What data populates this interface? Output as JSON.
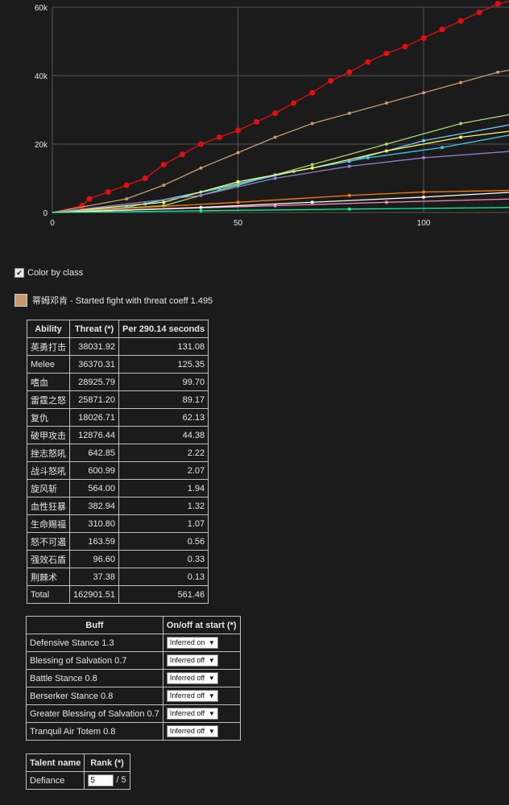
{
  "chart_data": {
    "type": "line",
    "x_ticks": [
      "0",
      "50",
      "100"
    ],
    "y_ticks": [
      "0",
      "20k",
      "40k",
      "60k"
    ],
    "xlim": [
      0,
      125
    ],
    "ylim": [
      0,
      62000
    ],
    "grid": true,
    "series": [
      {
        "color": "#e01010",
        "values": [
          [
            0,
            0
          ],
          [
            8,
            2000
          ],
          [
            10,
            4000
          ],
          [
            15,
            6000
          ],
          [
            20,
            8000
          ],
          [
            25,
            10000
          ],
          [
            30,
            14000
          ],
          [
            35,
            17000
          ],
          [
            40,
            20000
          ],
          [
            45,
            22000
          ],
          [
            50,
            24000
          ],
          [
            55,
            26500
          ],
          [
            60,
            29000
          ],
          [
            65,
            32000
          ],
          [
            70,
            35000
          ],
          [
            75,
            38500
          ],
          [
            80,
            41000
          ],
          [
            85,
            44000
          ],
          [
            90,
            46500
          ],
          [
            95,
            48500
          ],
          [
            100,
            51000
          ],
          [
            105,
            53500
          ],
          [
            110,
            56000
          ],
          [
            115,
            58500
          ],
          [
            120,
            61000
          ],
          [
            124,
            62000
          ]
        ]
      },
      {
        "color": "#c69b6d",
        "values": [
          [
            0,
            0
          ],
          [
            20,
            4000
          ],
          [
            30,
            8000
          ],
          [
            40,
            13000
          ],
          [
            50,
            17500
          ],
          [
            60,
            22000
          ],
          [
            70,
            26000
          ],
          [
            80,
            29000
          ],
          [
            90,
            32000
          ],
          [
            100,
            35000
          ],
          [
            110,
            38000
          ],
          [
            120,
            41000
          ],
          [
            125,
            42000
          ]
        ]
      },
      {
        "color": "#a9d271",
        "values": [
          [
            0,
            0
          ],
          [
            30,
            2000
          ],
          [
            50,
            8000
          ],
          [
            70,
            14000
          ],
          [
            90,
            20000
          ],
          [
            110,
            26000
          ],
          [
            125,
            29000
          ]
        ]
      },
      {
        "color": "#69ccf0",
        "values": [
          [
            0,
            0
          ],
          [
            20,
            1500
          ],
          [
            40,
            6000
          ],
          [
            60,
            11000
          ],
          [
            80,
            15000
          ],
          [
            100,
            21000
          ],
          [
            125,
            26000
          ]
        ]
      },
      {
        "color": "#3fc7eb",
        "values": [
          [
            0,
            0
          ],
          [
            25,
            2500
          ],
          [
            45,
            7000
          ],
          [
            65,
            12000
          ],
          [
            85,
            16000
          ],
          [
            105,
            19000
          ],
          [
            125,
            23000
          ]
        ]
      },
      {
        "color": "#fff569",
        "values": [
          [
            0,
            0
          ],
          [
            30,
            3000
          ],
          [
            50,
            9000
          ],
          [
            70,
            13000
          ],
          [
            90,
            18000
          ],
          [
            110,
            22000
          ],
          [
            125,
            24000
          ]
        ]
      },
      {
        "color": "#9482c9",
        "values": [
          [
            0,
            0
          ],
          [
            40,
            5000
          ],
          [
            60,
            10000
          ],
          [
            80,
            13500
          ],
          [
            100,
            16000
          ],
          [
            125,
            18000
          ]
        ]
      },
      {
        "color": "#ff7d0a",
        "values": [
          [
            0,
            0
          ],
          [
            50,
            3000
          ],
          [
            80,
            5000
          ],
          [
            100,
            6000
          ],
          [
            125,
            6500
          ]
        ]
      },
      {
        "color": "#f58cba",
        "values": [
          [
            0,
            0
          ],
          [
            60,
            2000
          ],
          [
            90,
            3000
          ],
          [
            125,
            4000
          ]
        ]
      },
      {
        "color": "#ffffff",
        "values": [
          [
            0,
            0
          ],
          [
            40,
            1500
          ],
          [
            70,
            3000
          ],
          [
            100,
            4500
          ],
          [
            125,
            6000
          ]
        ]
      },
      {
        "color": "#00ff96",
        "values": [
          [
            0,
            0
          ],
          [
            40,
            500
          ],
          [
            80,
            1000
          ],
          [
            125,
            1500
          ]
        ]
      }
    ]
  },
  "controls": {
    "color_by_class_label": "Color by class",
    "player_line": "蒂姆邓肯 - Started fight with threat coeff 1.495",
    "player_color": "#c69b6d"
  },
  "ability_table": {
    "headers": [
      "Ability",
      "Threat (*)",
      "Per 290.14 seconds"
    ],
    "rows": [
      [
        "英勇打击",
        "38031.92",
        "131.08"
      ],
      [
        "Melee",
        "36370.31",
        "125.35"
      ],
      [
        "嗜血",
        "28925.79",
        "99.70"
      ],
      [
        "雷霆之怒",
        "25871.20",
        "89.17"
      ],
      [
        "复仇",
        "18026.71",
        "62.13"
      ],
      [
        "破甲攻击",
        "12876.44",
        "44.38"
      ],
      [
        "挫志怒吼",
        "642.85",
        "2.22"
      ],
      [
        "战斗怒吼",
        "600.99",
        "2.07"
      ],
      [
        "旋风斩",
        "564.00",
        "1.94"
      ],
      [
        "血性狂暴",
        "382.94",
        "1.32"
      ],
      [
        "生命赐福",
        "310.80",
        "1.07"
      ],
      [
        "怒不可遏",
        "163.59",
        "0.56"
      ],
      [
        "强效石盾",
        "96.60",
        "0.33"
      ],
      [
        "荆棘术",
        "37.38",
        "0.13"
      ],
      [
        "Total",
        "162901.51",
        "561.46"
      ]
    ]
  },
  "buff_table": {
    "headers": [
      "Buff",
      "On/off at start (*)"
    ],
    "rows": [
      {
        "buff": "Defensive Stance 1.3",
        "state": "Inferred on"
      },
      {
        "buff": "Blessing of Salvation 0.7",
        "state": "Inferred off"
      },
      {
        "buff": "Battle Stance 0.8",
        "state": "Inferred off"
      },
      {
        "buff": "Berserker Stance 0.8",
        "state": "Inferred off"
      },
      {
        "buff": "Greater Blessing of Salvation 0.7",
        "state": "Inferred off"
      },
      {
        "buff": "Tranquil Air Totem 0.8",
        "state": "Inferred off"
      }
    ]
  },
  "talent_table": {
    "headers": [
      "Talent name",
      "Rank (*)"
    ],
    "rows": [
      {
        "name": "Defiance",
        "rank": "5",
        "max": "/ 5"
      }
    ]
  }
}
